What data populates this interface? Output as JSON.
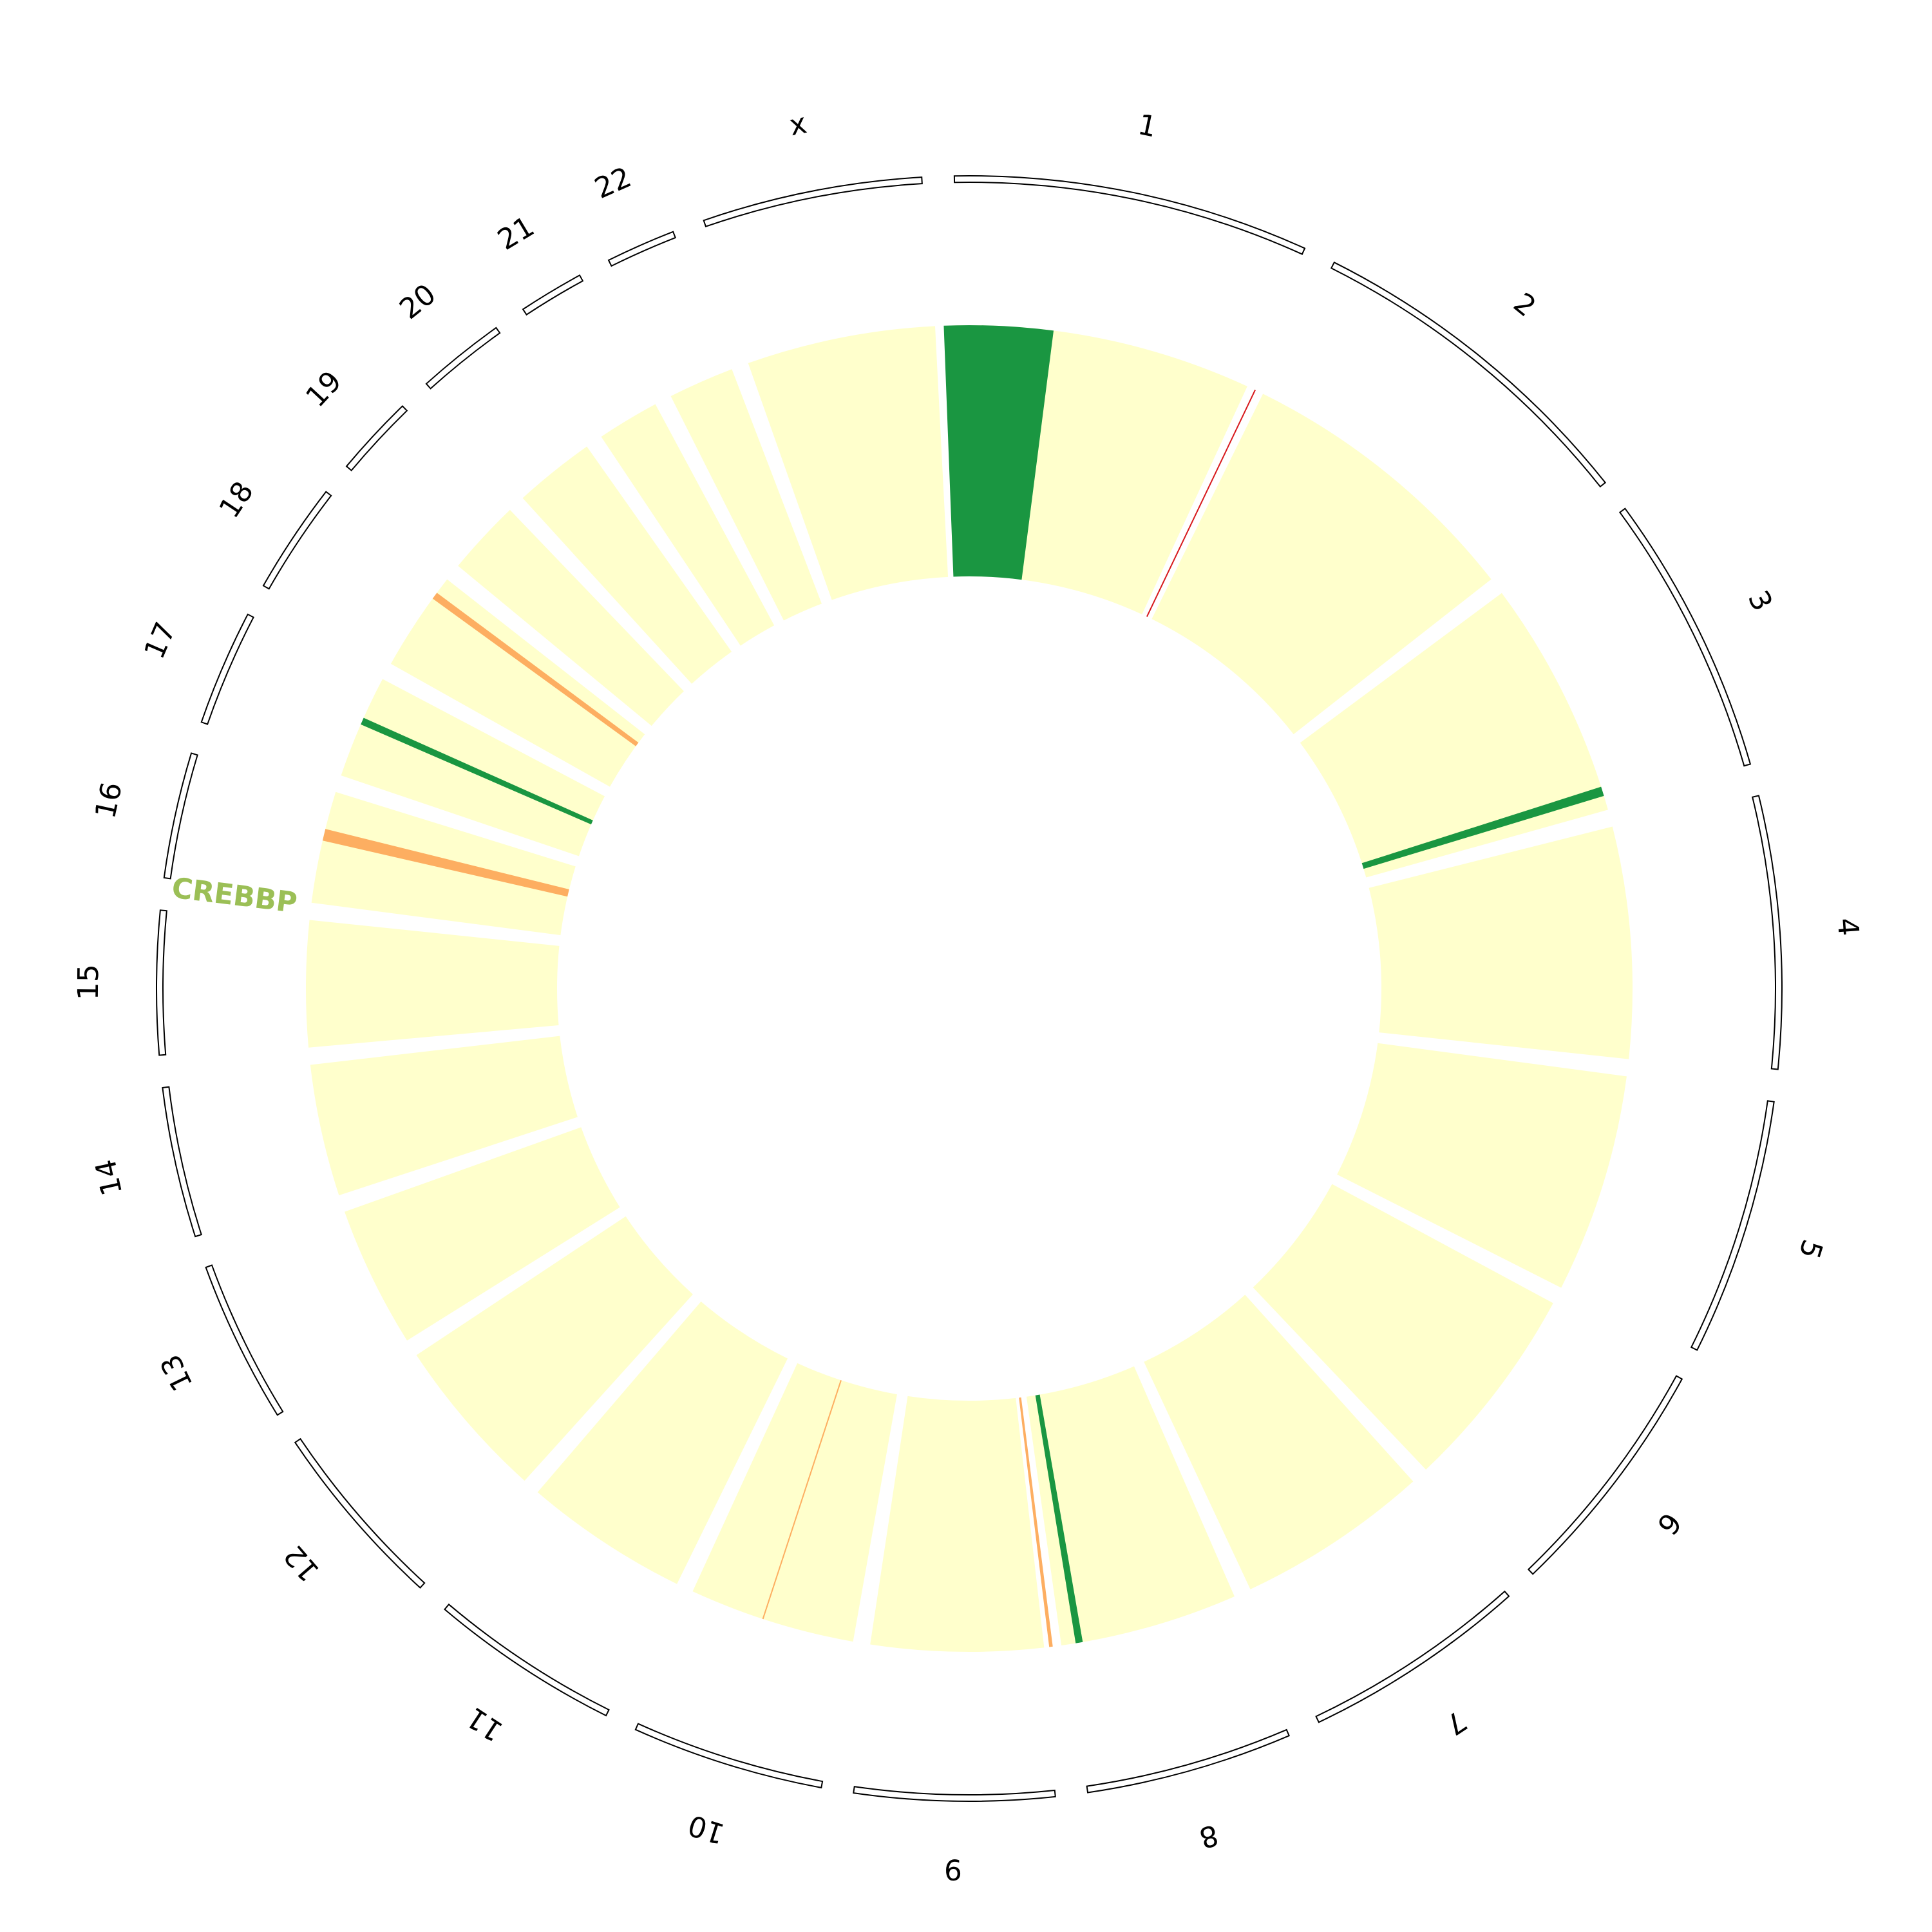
{
  "chart_data": {
    "type": "circos",
    "colors": {
      "background": "#ffffcc",
      "cnv_gain": "#1a9641",
      "cnv_loss": "#fdae61",
      "point": "#d7191c",
      "gene_label": "#9bbf56"
    },
    "chromosomes": [
      {
        "name": "1",
        "length": 249
      },
      {
        "name": "2",
        "length": 243
      },
      {
        "name": "3",
        "length": 198
      },
      {
        "name": "4",
        "length": 191
      },
      {
        "name": "5",
        "length": 181
      },
      {
        "name": "6",
        "length": 171
      },
      {
        "name": "7",
        "length": 159
      },
      {
        "name": "8",
        "length": 146
      },
      {
        "name": "9",
        "length": 141
      },
      {
        "name": "10",
        "length": 136
      },
      {
        "name": "11",
        "length": 135
      },
      {
        "name": "12",
        "length": 134
      },
      {
        "name": "13",
        "length": 115
      },
      {
        "name": "14",
        "length": 107
      },
      {
        "name": "15",
        "length": 102
      },
      {
        "name": "16",
        "length": 90
      },
      {
        "name": "17",
        "length": 83
      },
      {
        "name": "18",
        "length": 80
      },
      {
        "name": "19",
        "length": 59
      },
      {
        "name": "20",
        "length": 64
      },
      {
        "name": "21",
        "length": 48
      },
      {
        "name": "22",
        "length": 51
      },
      {
        "name": "x",
        "length": 155
      }
    ],
    "cnv_segments": [
      {
        "chrom": "1",
        "start": 0,
        "end": 92,
        "type": "gain"
      },
      {
        "chrom": "3",
        "start": 190,
        "end": 198,
        "type": "gain"
      },
      {
        "chrom": "8",
        "start": 140,
        "end": 146,
        "type": "gain"
      },
      {
        "chrom": "9",
        "start": 0,
        "end": 3,
        "type": "loss"
      },
      {
        "chrom": "16",
        "start": 60,
        "end": 70,
        "type": "loss"
      },
      {
        "chrom": "17",
        "start": 53,
        "end": 59,
        "type": "gain"
      },
      {
        "chrom": "18",
        "start": 72,
        "end": 78,
        "type": "loss"
      }
    ],
    "point_marks": [
      {
        "chrom": "2",
        "pos": 0,
        "type": "point"
      },
      {
        "chrom": "10",
        "pos": 85,
        "type": "loss"
      }
    ],
    "gene_labels": [
      {
        "name": "CREBBP",
        "chrom": "16",
        "pos": 3.8
      }
    ]
  }
}
